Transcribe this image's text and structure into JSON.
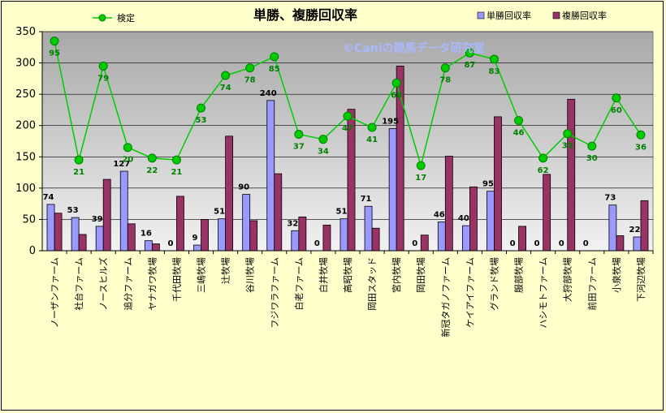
{
  "chart_data": {
    "type": "bar",
    "title": "単勝、複勝回収率",
    "watermark": "©Caniの競馬データ研究室",
    "ylim": [
      0,
      350
    ],
    "yticks": [
      0,
      50,
      100,
      150,
      200,
      250,
      300,
      350
    ],
    "grid": true,
    "legend_position": "top",
    "categories": [
      "ノーザンファーム",
      "社台ファーム",
      "ノースヒルズ",
      "追分ファーム",
      "ヤナガワ牧場",
      "千代田牧場",
      "三嶋牧場",
      "辻牧場",
      "谷川牧場",
      "フジワラファーム",
      "白老ファーム",
      "白井牧場",
      "高昭牧場",
      "岡田スタッド",
      "宮内牧場",
      "岡田牧場",
      "新冠タガノファーム",
      "ケイアイファーム",
      "グランド牧場",
      "服部牧場",
      "ハシモトファーム",
      "大狩部牧場",
      "前田ファーム",
      "小泉牧場",
      "下河辺牧場"
    ],
    "series": [
      {
        "name": "単勝回収率",
        "type": "bar",
        "color": "#9999ff",
        "values": [
          74,
          53,
          39,
          127,
          16,
          0,
          9,
          51,
          90,
          240,
          32,
          0,
          51,
          71,
          195,
          0,
          46,
          40,
          95,
          0,
          0,
          0,
          0,
          73,
          22
        ],
        "labels": [
          "74",
          "53",
          "39",
          "127",
          "16",
          "0",
          "9",
          "51",
          "90",
          "240",
          "32",
          "0",
          "51",
          "71",
          "195",
          "0",
          "46",
          "40",
          "95",
          "0",
          "0",
          "0",
          "0",
          "73",
          "22"
        ]
      },
      {
        "name": "複勝回収率",
        "type": "bar",
        "color": "#993366",
        "values": [
          60,
          26,
          114,
          43,
          11,
          87,
          50,
          183,
          48,
          123,
          54,
          41,
          226,
          36,
          295,
          25,
          151,
          102,
          214,
          39,
          122,
          242,
          0,
          24,
          80
        ]
      },
      {
        "name": "検定",
        "type": "line",
        "color": "#00cc00",
        "values": [
          335,
          145,
          295,
          165,
          148,
          145,
          228,
          280,
          292,
          310,
          186,
          178,
          215,
          197,
          268,
          136,
          292,
          316,
          306,
          208,
          148,
          187,
          167,
          244,
          185
        ],
        "labels": [
          "95",
          "21",
          "79",
          "20",
          "22",
          "21",
          "53",
          "74",
          "78",
          "85",
          "37",
          "34",
          "47",
          "41",
          "68",
          "17",
          "78",
          "87",
          "83",
          "46",
          "62",
          "33",
          "30",
          "60",
          "36"
        ]
      }
    ]
  }
}
